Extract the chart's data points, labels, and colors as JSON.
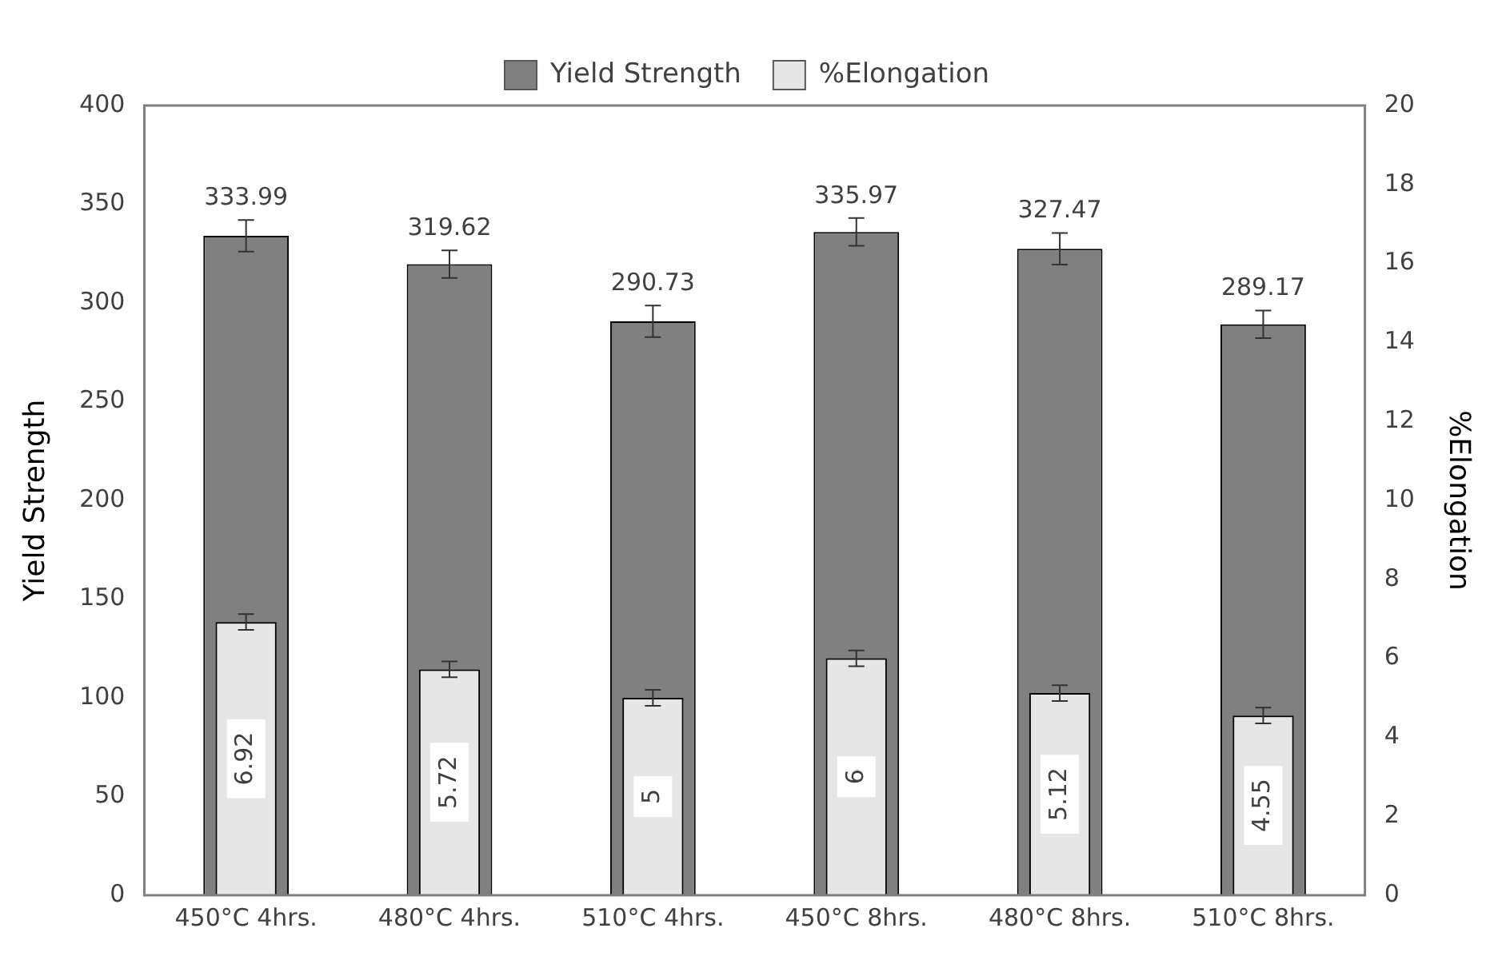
{
  "chart_data": {
    "type": "bar",
    "categories": [
      "450°C 4hrs.",
      "480°C 4hrs.",
      "510°C 4hrs.",
      "450°C 8hrs.",
      "480°C 8hrs.",
      "510°C 8hrs."
    ],
    "series": [
      {
        "name": "Yield Strength",
        "color": "#808080",
        "values": [
          333.99,
          319.62,
          290.73,
          335.97,
          327.47,
          289.17
        ],
        "errors": [
          8,
          7,
          8,
          7,
          8,
          7
        ]
      },
      {
        "name": "%Elongation",
        "color": "#e6e6e6",
        "axis": "y2",
        "values": [
          6.92,
          5.72,
          5,
          6,
          5.12,
          4.55
        ],
        "errors": [
          0.2,
          0.2,
          0.2,
          0.2,
          0.2,
          0.2
        ]
      }
    ],
    "ylabel": "Yield Strength",
    "y2label": "%Elongation",
    "ylim": [
      0,
      400
    ],
    "yticks": [
      0,
      50,
      100,
      150,
      200,
      250,
      300,
      350,
      400
    ],
    "y2lim": [
      0,
      20
    ],
    "y2ticks": [
      0,
      2,
      4,
      6,
      8,
      10,
      12,
      14,
      16,
      18,
      20
    ],
    "data_labels": true,
    "grid": false,
    "legend": "top"
  }
}
